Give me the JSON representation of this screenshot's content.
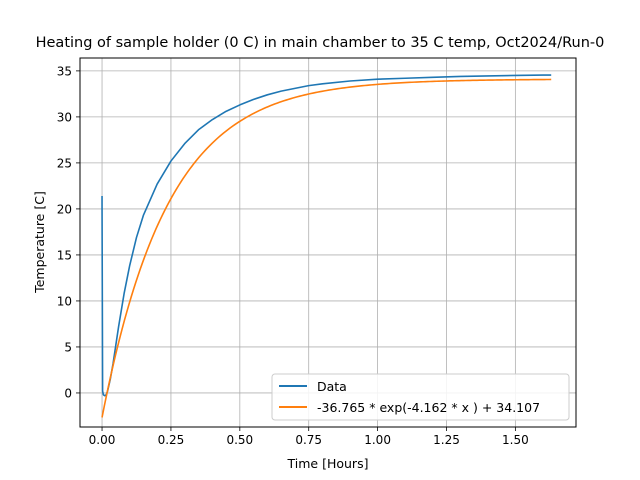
{
  "chart_data": {
    "type": "line",
    "title": "Heating of sample holder (0 C) in main chamber to 35 C temp, Oct2024/Run-0",
    "xlabel": "Time [Hours]",
    "ylabel": "Temperature [C]",
    "xlim": [
      -0.08,
      1.72
    ],
    "ylim": [
      -3.7,
      36.4
    ],
    "xticks": [
      0.0,
      0.25,
      0.5,
      0.75,
      1.0,
      1.25,
      1.5
    ],
    "xtick_labels": [
      "0.00",
      "0.25",
      "0.50",
      "0.75",
      "1.00",
      "1.25",
      "1.50"
    ],
    "yticks": [
      0,
      5,
      10,
      15,
      20,
      25,
      30,
      35
    ],
    "ytick_labels": [
      "0",
      "5",
      "10",
      "15",
      "20",
      "25",
      "30",
      "35"
    ],
    "grid": true,
    "legend_position": "lower-right",
    "series": [
      {
        "name": "Data",
        "color": "#1f77b4",
        "x": [
          0.0,
          0.0,
          0.002,
          0.005,
          0.01,
          0.015,
          0.02,
          0.03,
          0.04,
          0.05,
          0.06,
          0.08,
          0.1,
          0.125,
          0.15,
          0.2,
          0.25,
          0.3,
          0.35,
          0.4,
          0.45,
          0.5,
          0.55,
          0.6,
          0.65,
          0.7,
          0.75,
          0.8,
          0.9,
          1.0,
          1.1,
          1.2,
          1.3,
          1.4,
          1.5,
          1.6,
          1.63
        ],
        "y": [
          21.4,
          20.5,
          0.2,
          -0.2,
          -0.3,
          -0.2,
          0.2,
          1.5,
          3.2,
          5.2,
          7.2,
          10.8,
          13.8,
          16.9,
          19.3,
          22.7,
          25.2,
          27.1,
          28.6,
          29.7,
          30.6,
          31.3,
          31.9,
          32.4,
          32.8,
          33.1,
          33.4,
          33.6,
          33.9,
          34.1,
          34.2,
          34.3,
          34.4,
          34.45,
          34.5,
          34.55,
          34.55
        ]
      },
      {
        "name": "-36.765 * exp(-4.162 * x ) + 34.107",
        "color": "#ff7f0e",
        "function": {
          "a": -36.765,
          "b": -4.162,
          "c": 34.107
        },
        "x_range": [
          0.0,
          1.63
        ]
      }
    ]
  }
}
